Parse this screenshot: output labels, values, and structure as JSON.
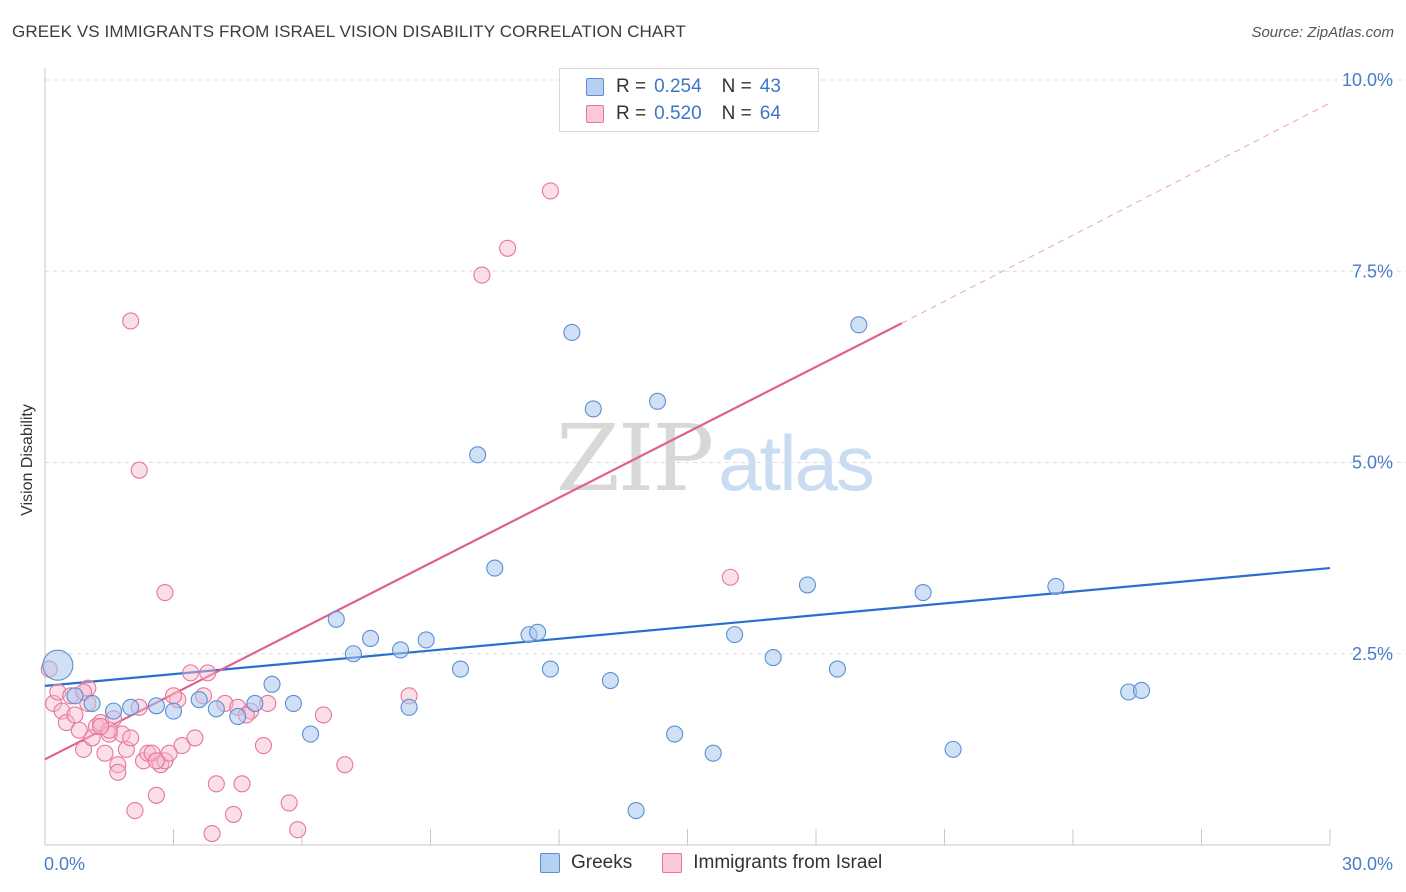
{
  "header": {
    "title": "GREEK VS IMMIGRANTS FROM ISRAEL VISION DISABILITY CORRELATION CHART",
    "source": "Source: ZipAtlas.com"
  },
  "watermark": {
    "zip": "ZIP",
    "atlas": "atlas"
  },
  "legend": {
    "rows": [
      {
        "r_label": "R =",
        "r_value": "0.254",
        "n_label": "N =",
        "n_value": "43"
      },
      {
        "r_label": "R =",
        "r_value": "0.520",
        "n_label": "N =",
        "n_value": "64"
      }
    ]
  },
  "bottom_legend": {
    "greeks": "Greeks",
    "israel": "Immigrants from Israel"
  },
  "colors": {
    "greeks_fill": "#a9c7ec",
    "greeks_stroke": "#5b8fd4",
    "greeks_line": "#2b6fce",
    "israel_fill": "#f6b8cb",
    "israel_stroke": "#e6769b",
    "israel_line": "#e0608e",
    "tick": "#4a7cc7",
    "grid": "#dedede"
  },
  "chart_data": {
    "type": "scatter",
    "title": "GREEK VS IMMIGRANTS FROM ISRAEL VISION DISABILITY CORRELATION CHART",
    "ylabel": "Vision Disability",
    "xlabel": "",
    "xlim": [
      0,
      30
    ],
    "ylim": [
      0,
      10
    ],
    "x_tick_labels": [
      "0.0%",
      "30.0%"
    ],
    "y_ticks": [
      2.5,
      5.0,
      7.5,
      10.0
    ],
    "y_tick_labels": [
      "2.5%",
      "5.0%",
      "7.5%",
      "10.0%"
    ],
    "grid": "horizontal dashed",
    "legend_position": "top-center",
    "series": [
      {
        "name": "Greeks",
        "r": 0.254,
        "n": 43,
        "trend": {
          "x": [
            0,
            30
          ],
          "y": [
            2.08,
            3.62
          ]
        },
        "points": [
          [
            0.3,
            2.35
          ],
          [
            0.7,
            1.95
          ],
          [
            1.1,
            1.85
          ],
          [
            1.6,
            1.75
          ],
          [
            2.0,
            1.8
          ],
          [
            2.6,
            1.82
          ],
          [
            3.0,
            1.75
          ],
          [
            3.6,
            1.9
          ],
          [
            4.0,
            1.78
          ],
          [
            4.5,
            1.68
          ],
          [
            4.9,
            1.85
          ],
          [
            5.3,
            2.1
          ],
          [
            5.8,
            1.85
          ],
          [
            6.2,
            1.45
          ],
          [
            6.8,
            2.95
          ],
          [
            7.2,
            2.5
          ],
          [
            7.6,
            2.7
          ],
          [
            8.3,
            2.55
          ],
          [
            8.5,
            1.8
          ],
          [
            8.9,
            2.68
          ],
          [
            9.7,
            2.3
          ],
          [
            10.1,
            5.1
          ],
          [
            10.5,
            3.62
          ],
          [
            11.3,
            2.75
          ],
          [
            11.5,
            2.78
          ],
          [
            11.8,
            2.3
          ],
          [
            12.3,
            6.7
          ],
          [
            12.8,
            5.7
          ],
          [
            13.2,
            2.15
          ],
          [
            13.8,
            0.45
          ],
          [
            14.3,
            5.8
          ],
          [
            14.7,
            1.45
          ],
          [
            15.6,
            1.2
          ],
          [
            16.1,
            2.75
          ],
          [
            17.0,
            2.45
          ],
          [
            17.8,
            3.4
          ],
          [
            18.5,
            2.3
          ],
          [
            19.0,
            6.8
          ],
          [
            20.5,
            3.3
          ],
          [
            21.2,
            1.25
          ],
          [
            23.6,
            3.38
          ],
          [
            25.3,
            2.0
          ],
          [
            25.6,
            2.02
          ]
        ]
      },
      {
        "name": "Immigrants from Israel",
        "r": 0.52,
        "n": 64,
        "trend": {
          "x": [
            0,
            20
          ],
          "y": [
            1.12,
            6.82
          ]
        },
        "trend_extension": {
          "x": [
            20,
            30
          ],
          "y": [
            6.82,
            9.7
          ]
        },
        "points": [
          [
            0.1,
            2.3
          ],
          [
            0.2,
            1.85
          ],
          [
            0.3,
            2.0
          ],
          [
            0.4,
            1.75
          ],
          [
            0.5,
            1.6
          ],
          [
            0.6,
            1.95
          ],
          [
            0.7,
            1.7
          ],
          [
            0.8,
            1.5
          ],
          [
            0.9,
            1.25
          ],
          [
            1.0,
            1.85
          ],
          [
            1.0,
            2.05
          ],
          [
            1.1,
            1.4
          ],
          [
            1.2,
            1.55
          ],
          [
            1.3,
            1.6
          ],
          [
            1.4,
            1.2
          ],
          [
            1.5,
            1.45
          ],
          [
            1.6,
            1.65
          ],
          [
            1.7,
            1.05
          ],
          [
            1.7,
            0.95
          ],
          [
            1.8,
            1.45
          ],
          [
            1.9,
            1.25
          ],
          [
            2.0,
            1.4
          ],
          [
            2.1,
            0.45
          ],
          [
            2.2,
            1.8
          ],
          [
            2.3,
            1.1
          ],
          [
            2.4,
            1.2
          ],
          [
            2.5,
            1.2
          ],
          [
            2.6,
            0.65
          ],
          [
            2.7,
            1.05
          ],
          [
            2.8,
            1.1
          ],
          [
            2.9,
            1.2
          ],
          [
            3.1,
            1.9
          ],
          [
            3.2,
            1.3
          ],
          [
            3.4,
            2.25
          ],
          [
            3.5,
            1.4
          ],
          [
            3.7,
            1.95
          ],
          [
            3.8,
            2.25
          ],
          [
            3.9,
            0.15
          ],
          [
            4.0,
            0.8
          ],
          [
            4.2,
            1.85
          ],
          [
            4.4,
            0.4
          ],
          [
            4.5,
            1.8
          ],
          [
            4.6,
            0.8
          ],
          [
            4.8,
            1.75
          ],
          [
            5.1,
            1.3
          ],
          [
            5.2,
            1.85
          ],
          [
            5.7,
            0.55
          ],
          [
            5.9,
            0.2
          ],
          [
            6.5,
            1.7
          ],
          [
            7.0,
            1.05
          ],
          [
            2.0,
            6.85
          ],
          [
            2.2,
            4.9
          ],
          [
            2.8,
            3.3
          ],
          [
            8.5,
            1.95
          ],
          [
            10.2,
            7.45
          ],
          [
            10.8,
            7.8
          ],
          [
            11.8,
            8.55
          ],
          [
            16.0,
            3.5
          ],
          [
            1.5,
            1.5
          ],
          [
            0.9,
            2.0
          ],
          [
            3.0,
            1.95
          ],
          [
            4.7,
            1.7
          ],
          [
            1.3,
            1.55
          ],
          [
            2.6,
            1.1
          ]
        ]
      }
    ]
  }
}
